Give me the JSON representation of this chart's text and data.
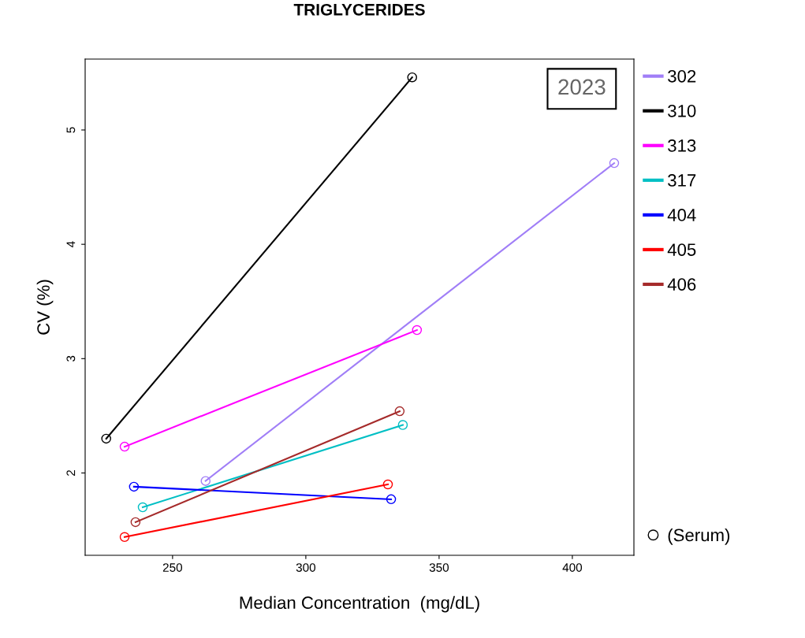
{
  "chart_data": {
    "type": "line",
    "title": "TRIGLYCERIDES",
    "xlabel": "Median Concentration  (mg/dL)",
    "ylabel": "CV (%)",
    "xlim": [
      217.2,
      423.1
    ],
    "ylim": [
      1.28,
      5.62
    ],
    "xticks": [
      250,
      300,
      350,
      400
    ],
    "yticks": [
      2,
      3,
      4,
      5
    ],
    "grid": false,
    "legend": "right",
    "marker": "circle",
    "line_style": "solid",
    "annotations": [
      "2023",
      "(Serum)"
    ],
    "series": [
      {
        "name": "302",
        "color": "#a07ef7",
        "x": [
          262.4,
          415.7
        ],
        "values": [
          1.93,
          4.71
        ]
      },
      {
        "name": "310",
        "color": "#000000",
        "x": [
          225.1,
          339.9
        ],
        "values": [
          2.3,
          5.46
        ]
      },
      {
        "name": "313",
        "color": "#ff00ff",
        "x": [
          232.0,
          341.7
        ],
        "values": [
          2.23,
          3.25
        ]
      },
      {
        "name": "317",
        "color": "#00bfc4",
        "x": [
          238.8,
          336.4
        ],
        "values": [
          1.7,
          2.42
        ]
      },
      {
        "name": "404",
        "color": "#0000ff",
        "x": [
          235.5,
          332.0
        ],
        "values": [
          1.88,
          1.77
        ]
      },
      {
        "name": "405",
        "color": "#ff0000",
        "x": [
          232.0,
          330.8
        ],
        "values": [
          1.44,
          1.9
        ]
      },
      {
        "name": "406",
        "color": "#a52a2a",
        "x": [
          236.1,
          335.2
        ],
        "values": [
          1.57,
          2.54
        ]
      }
    ]
  }
}
